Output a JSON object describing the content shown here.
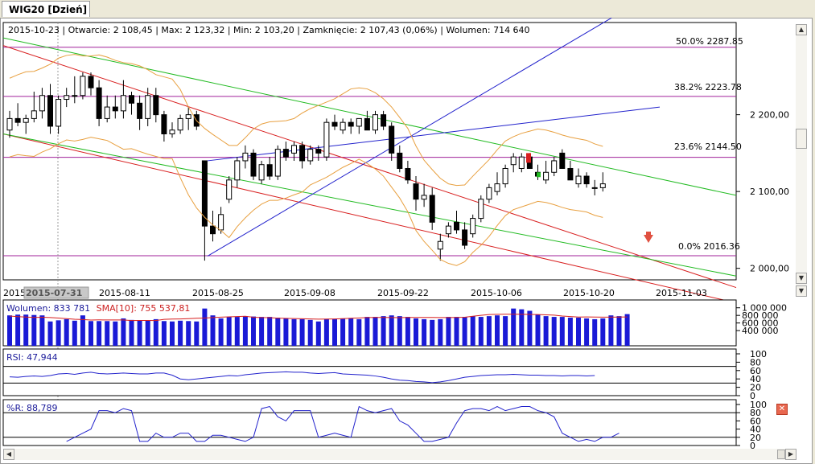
{
  "tab": {
    "title": "WIG20 [Dzień]"
  },
  "header": {
    "date": "2015-10-23",
    "open": "Otwarcie: 2 108,45",
    "max": "Max: 2 123,32",
    "min": "Min: 2 103,20",
    "close": "Zamknięcie: 2 107,43 (0,06%)",
    "volume": "Wolumen: 714 640"
  },
  "fib": {
    "l50": "50.0% 2287.85",
    "l382": "38.2% 2223.78",
    "l236": "23.6% 2144.50",
    "l0": "0.0% 2016.36"
  },
  "volume_panel": {
    "label": "Wolumen: 833 781",
    "sma": "SMA[10]: 755 537,81"
  },
  "rsi_panel": {
    "label": "RSI: 47,944"
  },
  "wr_panel": {
    "label": "%R: 88,789"
  },
  "crosshair_date": "2015-07-31",
  "colors": {
    "blue": "#2222cc",
    "red": "#d81f1f",
    "green": "#22bb22",
    "orange": "#e8a040",
    "purple": "#a0209a",
    "volbar": "#1a1ad6"
  },
  "chart_data": [
    {
      "type": "candlestick",
      "title": "WIG20 [Dzień]",
      "x_ticks": [
        "2015",
        "2015-08-11",
        "2015-08-25",
        "2015-09-08",
        "2015-09-22",
        "2015-10-06",
        "2015-10-20",
        "2015-11-03"
      ],
      "y_ticks": [
        "2 000,00",
        "2 100,00",
        "2 200,00"
      ],
      "ylim": [
        1985,
        2320
      ],
      "candles": [
        [
          2180,
          2205,
          2170,
          2195
        ],
        [
          2195,
          2215,
          2185,
          2190
        ],
        [
          2190,
          2200,
          2175,
          2195
        ],
        [
          2195,
          2230,
          2190,
          2205
        ],
        [
          2205,
          2235,
          2195,
          2225
        ],
        [
          2225,
          2240,
          2175,
          2185
        ],
        [
          2185,
          2225,
          2175,
          2220
        ],
        [
          2220,
          2235,
          2210,
          2225
        ],
        [
          2225,
          2250,
          2215,
          2225
        ],
        [
          2225,
          2255,
          2220,
          2250
        ],
        [
          2250,
          2255,
          2225,
          2235
        ],
        [
          2235,
          2245,
          2185,
          2195
        ],
        [
          2195,
          2225,
          2190,
          2210
        ],
        [
          2210,
          2225,
          2195,
          2205
        ],
        [
          2205,
          2245,
          2195,
          2225
        ],
        [
          2225,
          2230,
          2200,
          2215
        ],
        [
          2215,
          2225,
          2180,
          2195
        ],
        [
          2195,
          2235,
          2185,
          2225
        ],
        [
          2225,
          2235,
          2190,
          2200
        ],
        [
          2200,
          2205,
          2165,
          2175
        ],
        [
          2175,
          2190,
          2170,
          2180
        ],
        [
          2180,
          2200,
          2175,
          2195
        ],
        [
          2195,
          2210,
          2180,
          2200
        ],
        [
          2200,
          2205,
          2180,
          2185
        ],
        [
          2140,
          2140,
          2010,
          2055
        ],
        [
          2055,
          2075,
          2035,
          2045
        ],
        [
          2050,
          2080,
          2045,
          2070
        ],
        [
          2090,
          2120,
          2085,
          2115
        ],
        [
          2115,
          2145,
          2105,
          2140
        ],
        [
          2140,
          2160,
          2130,
          2150
        ],
        [
          2150,
          2155,
          2115,
          2120
        ],
        [
          2115,
          2140,
          2110,
          2135
        ],
        [
          2135,
          2145,
          2115,
          2120
        ],
        [
          2120,
          2160,
          2115,
          2155
        ],
        [
          2155,
          2165,
          2140,
          2145
        ],
        [
          2150,
          2165,
          2140,
          2160
        ],
        [
          2160,
          2165,
          2130,
          2140
        ],
        [
          2140,
          2160,
          2135,
          2155
        ],
        [
          2155,
          2160,
          2140,
          2150
        ],
        [
          2145,
          2195,
          2140,
          2190
        ],
        [
          2190,
          2200,
          2180,
          2185
        ],
        [
          2180,
          2195,
          2175,
          2190
        ],
        [
          2190,
          2195,
          2175,
          2185
        ],
        [
          2185,
          2195,
          2175,
          2195
        ],
        [
          2195,
          2205,
          2180,
          2180
        ],
        [
          2180,
          2205,
          2175,
          2200
        ],
        [
          2200,
          2205,
          2180,
          2185
        ],
        [
          2185,
          2190,
          2140,
          2150
        ],
        [
          2150,
          2160,
          2125,
          2130
        ],
        [
          2130,
          2140,
          2110,
          2115
        ],
        [
          2110,
          2120,
          2075,
          2090
        ],
        [
          2090,
          2110,
          2080,
          2095
        ],
        [
          2095,
          2105,
          2050,
          2060
        ],
        [
          2025,
          2045,
          2010,
          2035
        ],
        [
          2045,
          2060,
          2040,
          2055
        ],
        [
          2060,
          2075,
          2045,
          2050
        ],
        [
          2050,
          2060,
          2025,
          2030
        ],
        [
          2045,
          2070,
          2040,
          2065
        ],
        [
          2065,
          2095,
          2060,
          2090
        ],
        [
          2090,
          2110,
          2085,
          2105
        ],
        [
          2100,
          2125,
          2095,
          2110
        ],
        [
          2110,
          2135,
          2105,
          2130
        ],
        [
          2135,
          2150,
          2125,
          2145
        ],
        [
          2130,
          2150,
          2125,
          2145
        ],
        [
          2145,
          2150,
          2130,
          2130
        ],
        [
          2125,
          2135,
          2115,
          2120
        ],
        [
          2115,
          2140,
          2110,
          2125
        ],
        [
          2125,
          2145,
          2120,
          2140
        ],
        [
          2150,
          2155,
          2130,
          2130
        ],
        [
          2130,
          2140,
          2115,
          2115
        ],
        [
          2110,
          2130,
          2105,
          2120
        ],
        [
          2120,
          2125,
          2105,
          2110
        ],
        [
          2105,
          2115,
          2095,
          2105
        ],
        [
          2105,
          2125,
          2100,
          2110
        ]
      ],
      "fib_levels": [
        {
          "label": "50.0% 2287.85",
          "value": 2287.85
        },
        {
          "label": "38.2% 2223.78",
          "value": 2223.78
        },
        {
          "label": "23.6% 2144.50",
          "value": 2144.5
        },
        {
          "label": "0.0% 2016.36",
          "value": 2016.36
        }
      ]
    },
    {
      "type": "bar",
      "title": "Wolumen: 833 781",
      "series": [
        {
          "name": "SMA[10]: 755 537,81"
        }
      ],
      "y_ticks": [
        "1 000 000",
        "800 000",
        "600 000",
        "400 000"
      ],
      "values": [
        800000,
        820000,
        820000,
        810000,
        800000,
        640000,
        670000,
        700000,
        660000,
        800000,
        650000,
        650000,
        650000,
        640000,
        720000,
        680000,
        670000,
        660000,
        700000,
        650000,
        640000,
        660000,
        650000,
        640000,
        980000,
        800000,
        720000,
        760000,
        760000,
        780000,
        770000,
        760000,
        760000,
        740000,
        720000,
        700000,
        700000,
        680000,
        640000,
        700000,
        700000,
        720000,
        720000,
        700000,
        760000,
        760000,
        780000,
        800000,
        780000,
        760000,
        720000,
        700000,
        680000,
        700000,
        760000,
        760000,
        760000,
        780000,
        760000,
        780000,
        800000,
        780000,
        980000,
        960000,
        920000,
        820000,
        780000,
        760000,
        760000,
        740000,
        740000,
        720000,
        700000,
        720000,
        800000,
        780000,
        833781
      ]
    },
    {
      "type": "line",
      "title": "RSI: 47,944",
      "y_ticks": [
        "100",
        "80",
        "60",
        "40",
        "20",
        "0"
      ],
      "ylim": [
        0,
        100
      ],
      "values": [
        45,
        44,
        46,
        47,
        46,
        48,
        52,
        53,
        51,
        54,
        56,
        53,
        52,
        53,
        54,
        53,
        52,
        52,
        54,
        54,
        49,
        40,
        38,
        40,
        42,
        44,
        46,
        48,
        47,
        50,
        52,
        54,
        55,
        56,
        57,
        56,
        56,
        54,
        53,
        54,
        55,
        52,
        51,
        50,
        49,
        47,
        44,
        40,
        37,
        36,
        34,
        33,
        31,
        33,
        36,
        40,
        44,
        46,
        48,
        49,
        50,
        50,
        51,
        50,
        49,
        49,
        48,
        48,
        47,
        48,
        48,
        47,
        48
      ]
    },
    {
      "type": "line",
      "title": "%R: 88,789",
      "y_ticks": [
        "100",
        "80",
        "60",
        "40",
        "20",
        "0"
      ],
      "ylim": [
        0,
        100
      ],
      "values": [
        10,
        20,
        30,
        40,
        85,
        85,
        80,
        90,
        85,
        10,
        10,
        30,
        20,
        20,
        30,
        30,
        10,
        10,
        25,
        25,
        20,
        15,
        10,
        20,
        90,
        95,
        70,
        60,
        85,
        85,
        85,
        20,
        25,
        30,
        25,
        20,
        95,
        85,
        80,
        85,
        90,
        60,
        50,
        30,
        10,
        10,
        15,
        20,
        55,
        85,
        90,
        90,
        85,
        95,
        85,
        90,
        95,
        95,
        85,
        80,
        70,
        30,
        20,
        10,
        15,
        10,
        20,
        20,
        30
      ]
    }
  ]
}
